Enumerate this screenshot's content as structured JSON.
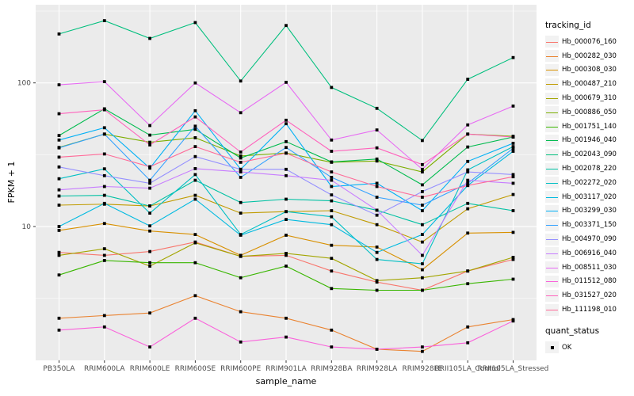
{
  "chart_data": {
    "type": "line",
    "title": "",
    "xlabel": "sample_name",
    "ylabel": "FPKM + 1",
    "yscale": "log10",
    "ylim": [
      1.17,
      350
    ],
    "ybreaks": [
      10,
      100
    ],
    "ybreak_labels": [
      "10",
      "100"
    ],
    "yminor_breaks": [
      3.162,
      31.623,
      316.228
    ],
    "grid": true,
    "panel_bg": "#EBEBEB",
    "grid_color": "#FFFFFF",
    "axis_text_color": "#4D4D4D",
    "tick_color": "#333333",
    "point_color": "#000000",
    "point_shape": "square",
    "legend_position": "right",
    "categories": [
      "PB350LA",
      "RRIM600LA",
      "RRIM600LE",
      "RRIM600SE",
      "RRIM600PE",
      "RRIM901LA",
      "RRIM928BA",
      "RRIM928LA",
      "RRIM928LE",
      "RRII105LA_Control",
      "RRII105LA_Stressed"
    ],
    "series": [
      {
        "name": "Hb_000076_160",
        "color": "#F8766D",
        "values": [
          6.6,
          6.3,
          6.7,
          7.8,
          6.2,
          6.3,
          4.9,
          4.1,
          3.6,
          4.9,
          5.9
        ]
      },
      {
        "name": "Hb_000282_030",
        "color": "#EA8331",
        "values": [
          2.3,
          2.4,
          2.5,
          3.3,
          2.55,
          2.3,
          1.9,
          1.4,
          1.35,
          2.0,
          2.25
        ]
      },
      {
        "name": "Hb_000308_030",
        "color": "#D89000",
        "values": [
          9.4,
          10.5,
          9.3,
          8.8,
          6.3,
          8.7,
          7.4,
          7.2,
          5.0,
          9.0,
          9.1
        ]
      },
      {
        "name": "Hb_000487_210",
        "color": "#C09B00",
        "values": [
          14.1,
          14.3,
          13.9,
          16.5,
          12.4,
          12.7,
          12.9,
          10.3,
          7.8,
          13.3,
          16.7
        ]
      },
      {
        "name": "Hb_000679_310",
        "color": "#A3A500",
        "values": [
          6.3,
          7.0,
          5.3,
          7.7,
          6.2,
          6.5,
          6.0,
          4.2,
          4.4,
          4.9,
          6.1
        ]
      },
      {
        "name": "Hb_000886_050",
        "color": "#7CAE00",
        "values": [
          35.5,
          44,
          38.6,
          41.5,
          31,
          32.5,
          28,
          28.6,
          24,
          44,
          42.5
        ]
      },
      {
        "name": "Hb_001751_140",
        "color": "#39B600",
        "values": [
          4.6,
          5.8,
          5.6,
          5.6,
          4.4,
          5.3,
          3.7,
          3.6,
          3.6,
          4.0,
          4.3
        ]
      },
      {
        "name": "Hb_001946_040",
        "color": "#00BB4E",
        "values": [
          43,
          66,
          43.3,
          47.5,
          30,
          39,
          28.2,
          29.5,
          19.5,
          35.8,
          42
        ]
      },
      {
        "name": "Hb_002043_090",
        "color": "#00BF7D",
        "values": [
          219,
          271,
          204,
          263,
          103,
          251,
          93,
          66.5,
          39.7,
          106,
          150
        ]
      },
      {
        "name": "Hb_002078_220",
        "color": "#00C1A3",
        "values": [
          16.3,
          16.5,
          13.9,
          21,
          14.7,
          15.5,
          15.1,
          13,
          10.3,
          14.5,
          12.9
        ]
      },
      {
        "name": "Hb_002272_020",
        "color": "#00BFC4",
        "values": [
          21.5,
          25.2,
          12.4,
          23,
          8.8,
          12.7,
          11.7,
          5.9,
          5.5,
          24.8,
          36
        ]
      },
      {
        "name": "Hb_003117_020",
        "color": "#00BAE0",
        "values": [
          10,
          14.5,
          10.1,
          15.5,
          8.7,
          11.2,
          10.3,
          6.6,
          8.8,
          19.3,
          33.4
        ]
      },
      {
        "name": "Hb_003299_030",
        "color": "#00B0F6",
        "values": [
          40,
          48.7,
          25.5,
          64,
          25,
          52,
          19,
          20,
          12.9,
          28.4,
          38
        ]
      },
      {
        "name": "Hb_003371_150",
        "color": "#35A2FF",
        "values": [
          35.3,
          44,
          21,
          50,
          22,
          35.5,
          22,
          16,
          14.1,
          20,
          35
        ]
      },
      {
        "name": "Hb_004970_090",
        "color": "#9590FF",
        "values": [
          26,
          22.6,
          20,
          30.7,
          25,
          25,
          16.6,
          12,
          17.5,
          24,
          23
        ]
      },
      {
        "name": "Hb_006916_040",
        "color": "#C77CFF",
        "values": [
          18,
          19,
          18.5,
          25.3,
          24,
          22.6,
          21,
          13,
          6.3,
          21,
          20
        ]
      },
      {
        "name": "Hb_008511_030",
        "color": "#E76BF3",
        "values": [
          97,
          102,
          50.5,
          100,
          62,
          101,
          40,
          47,
          25,
          51,
          69
        ]
      },
      {
        "name": "Hb_011512_080",
        "color": "#FA62DB",
        "values": [
          1.9,
          2.0,
          1.45,
          2.3,
          1.57,
          1.7,
          1.45,
          1.4,
          1.45,
          1.55,
          2.2
        ]
      },
      {
        "name": "Hb_031527_020",
        "color": "#FF62BC",
        "values": [
          61,
          65,
          37,
          58,
          33,
          55,
          33.4,
          35.3,
          27,
          44,
          42
        ]
      },
      {
        "name": "Hb_111198_010",
        "color": "#FF6A98",
        "values": [
          30.4,
          32,
          26.1,
          36,
          28,
          32.4,
          24,
          19,
          16,
          19.3,
          22.2
        ]
      }
    ],
    "legend": {
      "color_title": "tracking_id",
      "shape_title": "quant_status",
      "shape_items": [
        {
          "label": "OK"
        }
      ]
    }
  }
}
